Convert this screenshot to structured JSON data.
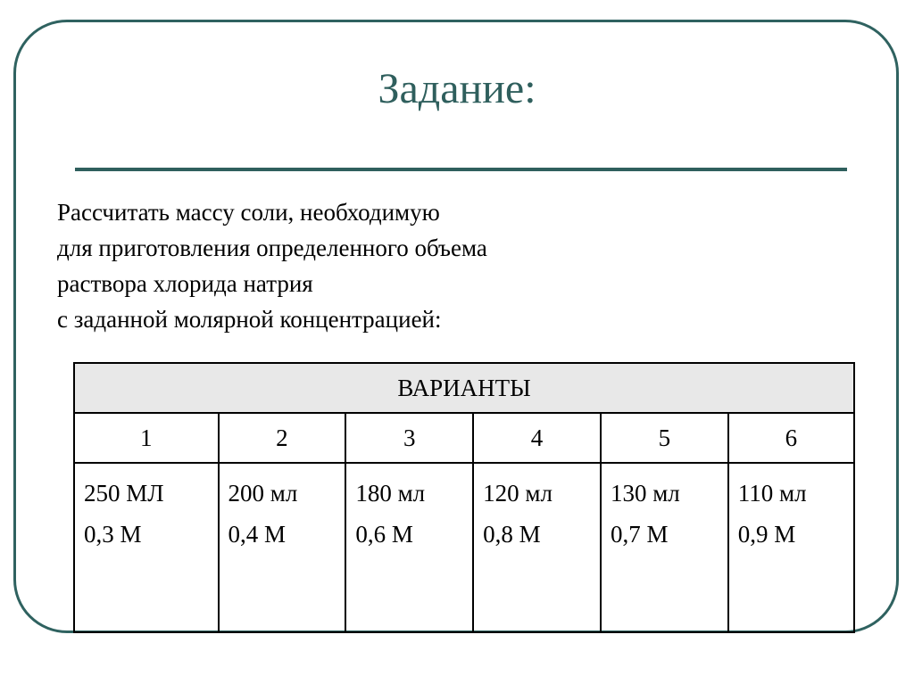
{
  "title": "Задание:",
  "lines": [
    "Рассчитать массу соли, необходимую",
    "для приготовления определенного объема",
    "раствора хлорида натрия",
    "с заданной молярной концентрацией:"
  ],
  "table": {
    "header": "ВАРИАНТЫ",
    "variants": [
      {
        "n": "1",
        "volume": "250 МЛ",
        "conc": "0,3 М"
      },
      {
        "n": "2",
        "volume": "200 мл",
        "conc": "0,4 М"
      },
      {
        "n": "3",
        "volume": "180 мл",
        "conc": "0,6 М"
      },
      {
        "n": "4",
        "volume": "120 мл",
        "conc": "0,8 М"
      },
      {
        "n": "5",
        "volume": "130 мл",
        "conc": "0,7 М"
      },
      {
        "n": "6",
        "volume": "110 мл",
        "conc": "0,9 М"
      }
    ]
  }
}
